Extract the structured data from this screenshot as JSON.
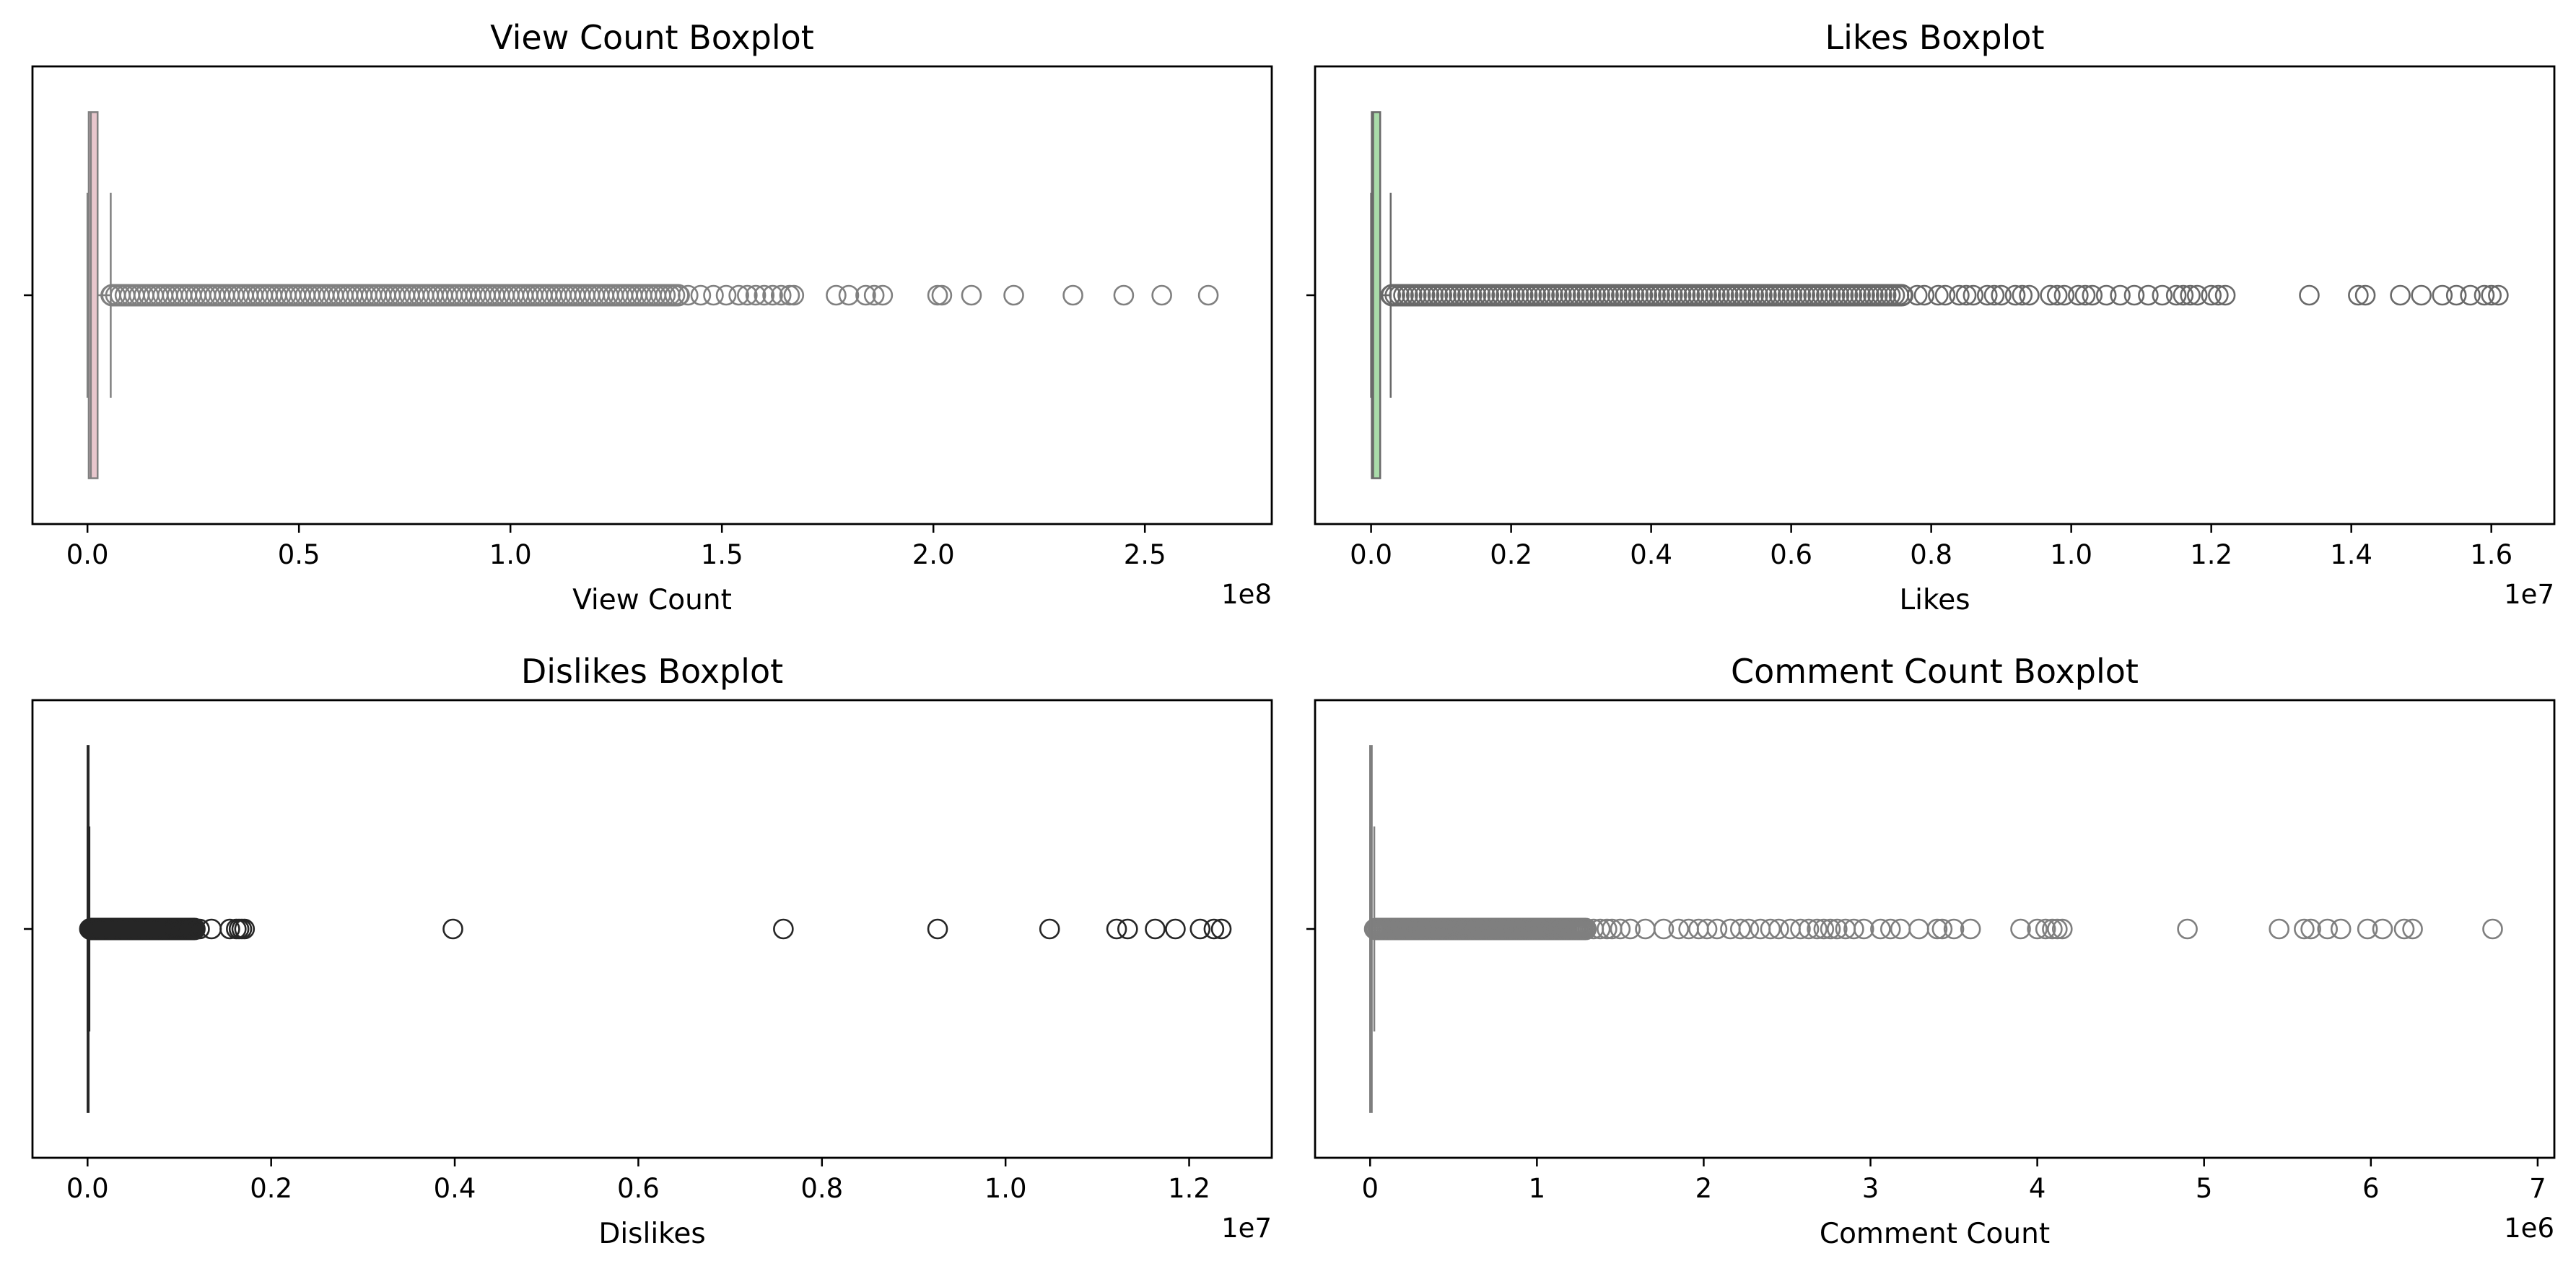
{
  "chart_data": [
    {
      "type": "boxplot",
      "title": "View Count Boxplot",
      "xlabel": "View Count",
      "ylabel": "",
      "offset_label": "1e8",
      "xlim": [
        -0.13,
        2.8
      ],
      "xticks": [
        0.0,
        0.5,
        1.0,
        1.5,
        2.0,
        2.5
      ],
      "xtick_labels": [
        "0.0",
        "0.5",
        "1.0",
        "1.5",
        "2.0",
        "2.5"
      ],
      "box_color": "#e8c7cd",
      "line_color": "#808080",
      "box": {
        "whisker_low": 0.0,
        "q1": 0.003,
        "median": 0.008,
        "q3": 0.024,
        "whisker_high": 0.055
      },
      "outlier_band": [
        0.055,
        1.4
      ],
      "outliers": [
        1.42,
        1.45,
        1.48,
        1.51,
        1.54,
        1.56,
        1.58,
        1.6,
        1.62,
        1.64,
        1.66,
        1.67,
        1.77,
        1.8,
        1.84,
        1.86,
        1.88,
        2.01,
        2.02,
        2.09,
        2.19,
        2.33,
        2.45,
        2.54,
        2.65
      ]
    },
    {
      "type": "boxplot",
      "title": "Likes Boxplot",
      "xlabel": "Likes",
      "ylabel": "",
      "offset_label": "1e7",
      "xlim": [
        -0.08,
        1.69
      ],
      "xticks": [
        0.0,
        0.2,
        0.4,
        0.6,
        0.8,
        1.0,
        1.2,
        1.4,
        1.6
      ],
      "xtick_labels": [
        "0.0",
        "0.2",
        "0.4",
        "0.6",
        "0.8",
        "1.0",
        "1.2",
        "1.4",
        "1.6"
      ],
      "box_color": "#a9dba9",
      "line_color": "#696969",
      "box": {
        "whisker_low": 0.0,
        "q1": 0.001,
        "median": 0.003,
        "q3": 0.013,
        "whisker_high": 0.028
      },
      "outlier_band": [
        0.028,
        0.76
      ],
      "outliers": [
        0.78,
        0.79,
        0.81,
        0.82,
        0.84,
        0.85,
        0.86,
        0.88,
        0.89,
        0.9,
        0.92,
        0.93,
        0.94,
        0.97,
        0.98,
        0.99,
        1.01,
        1.02,
        1.03,
        1.05,
        1.07,
        1.09,
        1.11,
        1.13,
        1.15,
        1.16,
        1.17,
        1.18,
        1.2,
        1.21,
        1.22,
        1.34,
        1.41,
        1.42,
        1.47,
        1.5,
        1.53,
        1.55,
        1.57,
        1.59,
        1.6,
        1.61
      ]
    },
    {
      "type": "boxplot",
      "title": "Dislikes Boxplot",
      "xlabel": "Dislikes",
      "ylabel": "",
      "offset_label": "1e7",
      "xlim": [
        -0.06,
        1.29
      ],
      "xticks": [
        0.0,
        0.2,
        0.4,
        0.6,
        0.8,
        1.0,
        1.2
      ],
      "xtick_labels": [
        "0.0",
        "0.2",
        "0.4",
        "0.6",
        "0.8",
        "1.0",
        "1.2"
      ],
      "box_color": "#ffffff",
      "line_color": "#262626",
      "box": {
        "whisker_low": 0.0,
        "q1": 0.0,
        "median": 0.0003,
        "q3": 0.0008,
        "whisker_high": 0.002
      },
      "outlier_band": [
        0.002,
        0.118
      ],
      "outliers": [
        0.122,
        0.135,
        0.155,
        0.162,
        0.165,
        0.168,
        0.171,
        0.398,
        0.758,
        0.926,
        1.048,
        1.121,
        1.133,
        1.163,
        1.185,
        1.212,
        1.227,
        1.235
      ]
    },
    {
      "type": "boxplot",
      "title": "Comment Count Boxplot",
      "xlabel": "Comment Count",
      "ylabel": "",
      "offset_label": "1e6",
      "xlim": [
        -0.33,
        7.1
      ],
      "xticks": [
        0,
        1,
        2,
        3,
        4,
        5,
        6,
        7
      ],
      "xtick_labels": [
        "0",
        "1",
        "2",
        "3",
        "4",
        "5",
        "6",
        "7"
      ],
      "box_color": "#bbbbbb",
      "line_color": "#7f7f7f",
      "box": {
        "whisker_low": 0.0,
        "q1": 0.0,
        "median": 0.003,
        "q3": 0.01,
        "whisker_high": 0.025
      },
      "outlier_band": [
        0.025,
        1.3
      ],
      "outliers": [
        1.34,
        1.38,
        1.42,
        1.45,
        1.5,
        1.56,
        1.65,
        1.76,
        1.85,
        1.91,
        1.97,
        2.02,
        2.08,
        2.16,
        2.22,
        2.27,
        2.34,
        2.4,
        2.45,
        2.52,
        2.58,
        2.63,
        2.68,
        2.72,
        2.76,
        2.8,
        2.85,
        2.9,
        2.96,
        3.06,
        3.12,
        3.18,
        3.29,
        3.4,
        3.43,
        3.5,
        3.6,
        3.9,
        4.0,
        4.05,
        4.09,
        4.12,
        4.15,
        4.9,
        5.45,
        5.6,
        5.64,
        5.74,
        5.82,
        5.98,
        6.07,
        6.2,
        6.25,
        6.73
      ]
    }
  ]
}
